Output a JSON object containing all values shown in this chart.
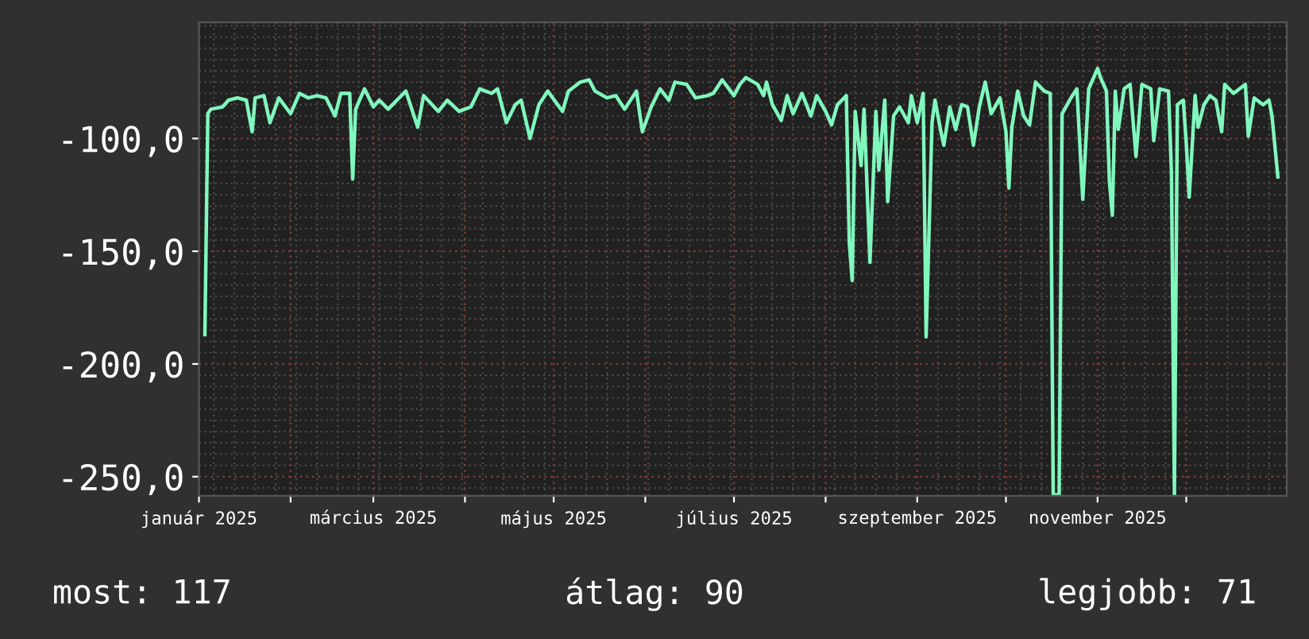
{
  "chart_data": {
    "type": "line",
    "x": [
      "2025-01-03",
      "2025-01-04",
      "2025-01-05",
      "2025-01-09",
      "2025-01-11",
      "2025-01-14",
      "2025-01-17",
      "2025-01-19",
      "2025-01-20",
      "2025-01-23",
      "2025-01-25",
      "2025-01-28",
      "2025-02-01",
      "2025-02-04",
      "2025-02-07",
      "2025-02-10",
      "2025-02-13",
      "2025-02-16",
      "2025-02-18",
      "2025-02-21",
      "2025-02-22",
      "2025-02-23",
      "2025-02-26",
      "2025-03-01",
      "2025-03-03",
      "2025-03-06",
      "2025-03-12",
      "2025-03-16",
      "2025-03-18",
      "2025-03-23",
      "2025-03-26",
      "2025-03-30",
      "2025-04-03",
      "2025-04-06",
      "2025-04-10",
      "2025-04-12",
      "2025-04-15",
      "2025-04-18",
      "2025-04-20",
      "2025-04-23",
      "2025-04-26",
      "2025-04-29",
      "2025-05-04",
      "2025-05-06",
      "2025-05-10",
      "2025-05-13",
      "2025-05-15",
      "2025-05-19",
      "2025-05-22",
      "2025-05-25",
      "2025-05-29",
      "2025-05-31",
      "2025-06-03",
      "2025-06-06",
      "2025-06-09",
      "2025-06-11",
      "2025-06-15",
      "2025-06-18",
      "2025-06-22",
      "2025-06-24",
      "2025-06-27",
      "2025-07-01",
      "2025-07-03",
      "2025-07-05",
      "2025-07-09",
      "2025-07-11",
      "2025-07-12",
      "2025-07-14",
      "2025-07-17",
      "2025-07-19",
      "2025-07-21",
      "2025-07-24",
      "2025-07-27",
      "2025-07-29",
      "2025-08-01",
      "2025-08-03",
      "2025-08-05",
      "2025-08-08",
      "2025-08-09",
      "2025-08-10",
      "2025-08-11",
      "2025-08-13",
      "2025-08-14",
      "2025-08-16",
      "2025-08-18",
      "2025-08-19",
      "2025-08-21",
      "2025-08-22",
      "2025-08-24",
      "2025-08-26",
      "2025-08-29",
      "2025-08-30",
      "2025-09-01",
      "2025-09-03",
      "2025-09-04",
      "2025-09-06",
      "2025-09-07",
      "2025-09-09",
      "2025-09-10",
      "2025-09-12",
      "2025-09-14",
      "2025-09-16",
      "2025-09-18",
      "2025-09-20",
      "2025-09-22",
      "2025-09-24",
      "2025-09-26",
      "2025-09-29",
      "2025-10-01",
      "2025-10-02",
      "2025-10-03",
      "2025-10-05",
      "2025-10-07",
      "2025-10-09",
      "2025-10-11",
      "2025-10-14",
      "2025-10-16",
      "2025-10-17",
      "2025-10-19",
      "2025-10-20",
      "2025-10-23",
      "2025-10-25",
      "2025-10-27",
      "2025-10-29",
      "2025-11-01",
      "2025-11-02",
      "2025-11-04",
      "2025-11-05",
      "2025-11-06",
      "2025-11-07",
      "2025-11-08",
      "2025-11-10",
      "2025-11-12",
      "2025-11-14",
      "2025-11-16",
      "2025-11-19",
      "2025-11-20",
      "2025-11-22",
      "2025-11-25",
      "2025-11-26",
      "2025-11-27",
      "2025-11-28",
      "2025-11-30",
      "2025-12-01",
      "2025-12-02",
      "2025-12-04",
      "2025-12-05",
      "2025-12-07",
      "2025-12-09",
      "2025-12-11",
      "2025-12-13",
      "2025-12-14",
      "2025-12-17",
      "2025-12-21",
      "2025-12-22",
      "2025-12-24",
      "2025-12-27",
      "2025-12-29",
      "2025-12-30",
      "2026-01-01"
    ],
    "series": [
      {
        "color": "#80f7bd",
        "values": [
          -187,
          -89,
          -87,
          -86,
          -83,
          -82,
          -83,
          -97,
          -82,
          -81,
          -93,
          -82,
          -89,
          -80,
          -82,
          -81,
          -82,
          -90,
          -80,
          -80,
          -118,
          -87,
          -78,
          -86,
          -83,
          -87,
          -79,
          -95,
          -81,
          -88,
          -83,
          -88,
          -86,
          -78,
          -80,
          -78,
          -93,
          -85,
          -83,
          -100,
          -85,
          -79,
          -88,
          -79,
          -75,
          -74,
          -79,
          -82,
          -81,
          -87,
          -79,
          -97,
          -86,
          -78,
          -83,
          -75,
          -76,
          -82,
          -81,
          -80,
          -74,
          -81,
          -76,
          -73,
          -76,
          -81,
          -75,
          -85,
          -92,
          -81,
          -89,
          -80,
          -90,
          -81,
          -88,
          -94,
          -85,
          -81,
          -146,
          -163,
          -88,
          -112,
          -87,
          -155,
          -88,
          -114,
          -83,
          -128,
          -90,
          -86,
          -93,
          -81,
          -93,
          -80,
          -188,
          -93,
          -83,
          -97,
          -103,
          -86,
          -96,
          -85,
          -86,
          -103,
          -86,
          -75,
          -89,
          -82,
          -97,
          -122,
          -95,
          -79,
          -90,
          -94,
          -75,
          -79,
          -80,
          -258,
          -258,
          -89,
          -82,
          -78,
          -127,
          -78,
          -69,
          -73,
          -79,
          -119,
          -134,
          -79,
          -96,
          -78,
          -76,
          -108,
          -76,
          -78,
          -101,
          -78,
          -79,
          -115,
          -258,
          -85,
          -83,
          -102,
          -126,
          -81,
          -95,
          -85,
          -81,
          -83,
          -97,
          -76,
          -80,
          -76,
          -99,
          -82,
          -85,
          -83,
          -90,
          -117
        ]
      }
    ],
    "xlim": [
      "2025-01-01",
      "2026-01-04"
    ],
    "xticks": [
      {
        "value": "2025-01-01",
        "label": "január 2025"
      },
      {
        "value": "2025-02-01",
        "label": null
      },
      {
        "value": "2025-03-01",
        "label": "március 2025"
      },
      {
        "value": "2025-04-01",
        "label": null
      },
      {
        "value": "2025-05-01",
        "label": "május 2025"
      },
      {
        "value": "2025-06-01",
        "label": null
      },
      {
        "value": "2025-07-01",
        "label": "július 2025"
      },
      {
        "value": "2025-08-01",
        "label": null
      },
      {
        "value": "2025-09-01",
        "label": "szeptember 2025"
      },
      {
        "value": "2025-10-01",
        "label": null
      },
      {
        "value": "2025-11-01",
        "label": "november 2025"
      },
      {
        "value": "2025-12-01",
        "label": null
      }
    ],
    "ylim": [
      -258.5,
      -48.5
    ],
    "yticks": [
      {
        "value": -250,
        "label": "-250,0"
      },
      {
        "value": -200,
        "label": "-200,0"
      },
      {
        "value": -150,
        "label": "-150,0"
      },
      {
        "value": -100,
        "label": "-100,0"
      }
    ],
    "grid": true,
    "annotations": [
      "most: 117",
      "átlag: 90",
      "legjobb: 71"
    ]
  }
}
